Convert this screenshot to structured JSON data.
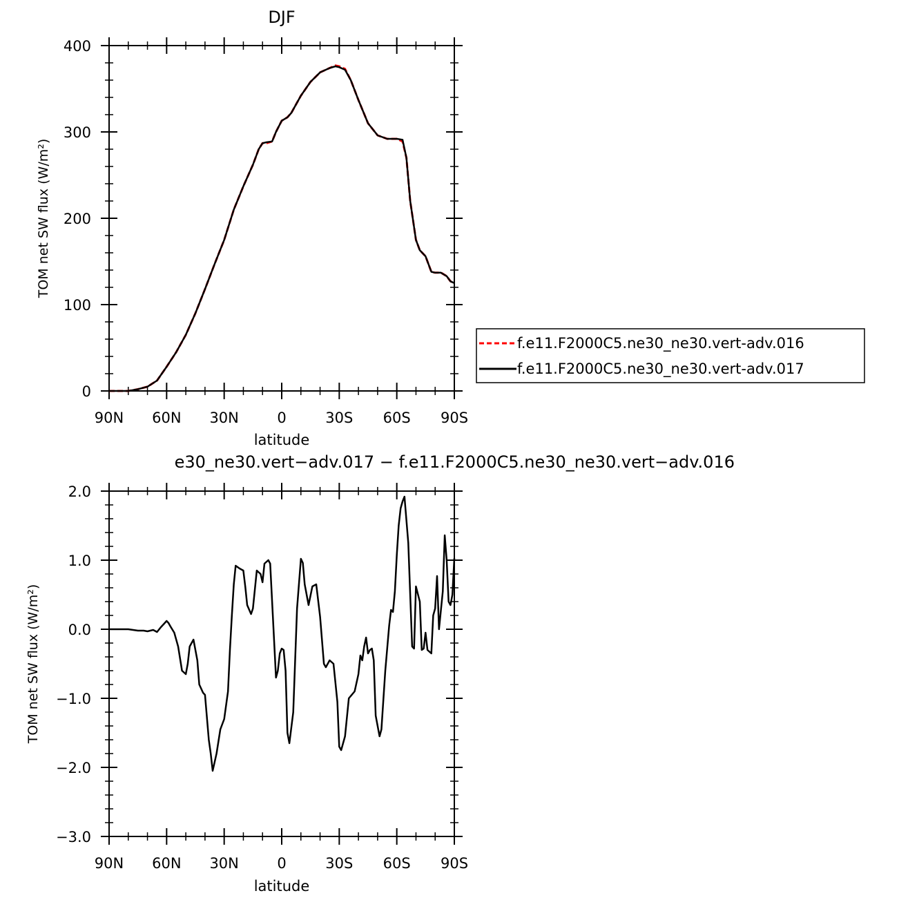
{
  "chart_data": [
    {
      "type": "line",
      "title": "DJF",
      "xlabel": "latitude",
      "ylabel": "TOM net SW flux (W/m²)",
      "xlim": [
        -90,
        90
      ],
      "ylim": [
        0,
        400
      ],
      "x_ticks": [
        -90,
        -60,
        -30,
        0,
        30,
        60,
        90
      ],
      "x_tick_labels": [
        "90N",
        "60N",
        "30N",
        "0",
        "30S",
        "60S",
        "90S"
      ],
      "y_ticks": [
        0,
        100,
        200,
        300,
        400
      ],
      "y_tick_labels": [
        "0",
        "100",
        "200",
        "300",
        "400"
      ],
      "legend_position": "right",
      "series": [
        {
          "name": "f.e11.F2000C5.ne30_ne30.vert-adv.016",
          "color": "#ff0000",
          "dash": "dashed",
          "x": [
            -90,
            -80,
            -75,
            -70,
            -65,
            -60,
            -55,
            -50,
            -45,
            -40,
            -35,
            -30,
            -25,
            -20,
            -15,
            -12,
            -10,
            -8,
            -5,
            -3,
            0,
            3,
            5,
            10,
            15,
            20,
            25,
            28,
            30,
            33,
            36,
            40,
            45,
            50,
            55,
            60,
            63,
            65,
            67,
            70,
            72,
            75,
            78,
            80,
            83,
            86,
            88,
            90
          ],
          "y": [
            0,
            0,
            2,
            5,
            12,
            28,
            45,
            65,
            90,
            118,
            147,
            175,
            210,
            237,
            262,
            280,
            287,
            287,
            289,
            300,
            313,
            317,
            322,
            342,
            358,
            369,
            374,
            377,
            376,
            373,
            360,
            337,
            310,
            296,
            292,
            292,
            289,
            270,
            220,
            175,
            163,
            156,
            138,
            137,
            137,
            133,
            127,
            125
          ]
        },
        {
          "name": "f.e11.F2000C5.ne30_ne30.vert-adv.017",
          "color": "#000000",
          "dash": "solid",
          "x": [
            -90,
            -80,
            -75,
            -70,
            -65,
            -60,
            -55,
            -50,
            -45,
            -40,
            -35,
            -30,
            -25,
            -20,
            -15,
            -12,
            -10,
            -8,
            -5,
            -3,
            0,
            3,
            5,
            10,
            15,
            20,
            25,
            28,
            30,
            33,
            36,
            40,
            45,
            50,
            55,
            60,
            63,
            65,
            67,
            70,
            72,
            75,
            78,
            80,
            83,
            86,
            88,
            90
          ],
          "y": [
            0,
            0,
            2,
            5,
            12,
            28,
            45,
            65,
            90,
            118,
            147,
            175,
            210,
            237,
            262,
            280,
            287,
            288,
            289,
            300,
            313,
            317,
            322,
            342,
            358,
            369,
            374,
            376,
            375,
            372,
            360,
            337,
            310,
            296,
            292,
            292,
            291,
            270,
            220,
            175,
            163,
            156,
            138,
            137,
            137,
            133,
            127,
            125
          ]
        }
      ]
    },
    {
      "type": "line",
      "title": "e30_ne30.vert−adv.017 − f.e11.F2000C5.ne30_ne30.vert−adv.016",
      "xlabel": "latitude",
      "ylabel": "TOM net SW flux (W/m²)",
      "xlim": [
        -90,
        90
      ],
      "ylim": [
        -3.0,
        2.0
      ],
      "x_ticks": [
        -90,
        -60,
        -30,
        0,
        30,
        60,
        90
      ],
      "x_tick_labels": [
        "90N",
        "60N",
        "30N",
        "0",
        "30S",
        "60S",
        "90S"
      ],
      "y_ticks": [
        -3.0,
        -2.0,
        -1.0,
        0.0,
        1.0,
        2.0
      ],
      "y_tick_labels": [
        "−3.0",
        "−2.0",
        "−1.0",
        "0.0",
        "1.0",
        "2.0"
      ],
      "series": [
        {
          "color": "#000000",
          "dash": "solid",
          "x": [
            -90,
            -80,
            -75,
            -72,
            -70,
            -67,
            -65,
            -63,
            -62,
            -60,
            -59,
            -58,
            -56,
            -54,
            -52,
            -50,
            -49,
            -48,
            -46,
            -44,
            -43,
            -41,
            -40,
            -38,
            -37,
            -36,
            -34,
            -32,
            -30,
            -28,
            -27,
            -26,
            -25,
            -24,
            -22,
            -20,
            -19,
            -18,
            -16,
            -15,
            -13,
            -11,
            -10,
            -9,
            -7,
            -6,
            -4,
            -3,
            -2,
            -1,
            0,
            1,
            2,
            3,
            4,
            6,
            8,
            10,
            11,
            12,
            14,
            16,
            18,
            20,
            22,
            23,
            25,
            27,
            29,
            30,
            31,
            33,
            35,
            38,
            40,
            41,
            42,
            43,
            44,
            45,
            46,
            47,
            48,
            49,
            51,
            52,
            54,
            56,
            57,
            58,
            59,
            60,
            61,
            62,
            63,
            64,
            66,
            68,
            69,
            70,
            72,
            73,
            74,
            75,
            76,
            78,
            79,
            80,
            81,
            82,
            84,
            85,
            86,
            87,
            88,
            89,
            90
          ],
          "y": [
            0.0,
            0.0,
            -0.02,
            -0.02,
            -0.03,
            -0.01,
            -0.04,
            0.03,
            0.06,
            0.12,
            0.09,
            0.04,
            -0.05,
            -0.25,
            -0.6,
            -0.65,
            -0.5,
            -0.25,
            -0.15,
            -0.45,
            -0.8,
            -0.92,
            -0.95,
            -1.6,
            -1.8,
            -2.05,
            -1.8,
            -1.45,
            -1.3,
            -0.9,
            -0.3,
            0.2,
            0.65,
            0.92,
            0.88,
            0.85,
            0.62,
            0.35,
            0.22,
            0.3,
            0.85,
            0.8,
            0.68,
            0.95,
            1.0,
            0.95,
            -0.15,
            -0.7,
            -0.6,
            -0.35,
            -0.28,
            -0.3,
            -0.6,
            -1.5,
            -1.65,
            -1.2,
            0.3,
            1.02,
            0.96,
            0.65,
            0.35,
            0.62,
            0.65,
            0.18,
            -0.5,
            -0.55,
            -0.45,
            -0.5,
            -1.05,
            -1.7,
            -1.75,
            -1.55,
            -1.0,
            -0.9,
            -0.65,
            -0.38,
            -0.45,
            -0.25,
            -0.12,
            -0.35,
            -0.3,
            -0.28,
            -0.45,
            -1.25,
            -1.55,
            -1.45,
            -0.6,
            0.05,
            0.28,
            0.25,
            0.55,
            1.08,
            1.5,
            1.75,
            1.85,
            1.92,
            1.25,
            -0.25,
            -0.28,
            0.62,
            0.4,
            -0.3,
            -0.28,
            -0.05,
            -0.3,
            -0.35,
            0.2,
            0.3,
            0.77,
            0.0,
            0.55,
            1.36,
            1.0,
            0.4,
            0.35,
            0.5,
            1.03
          ]
        }
      ]
    }
  ]
}
